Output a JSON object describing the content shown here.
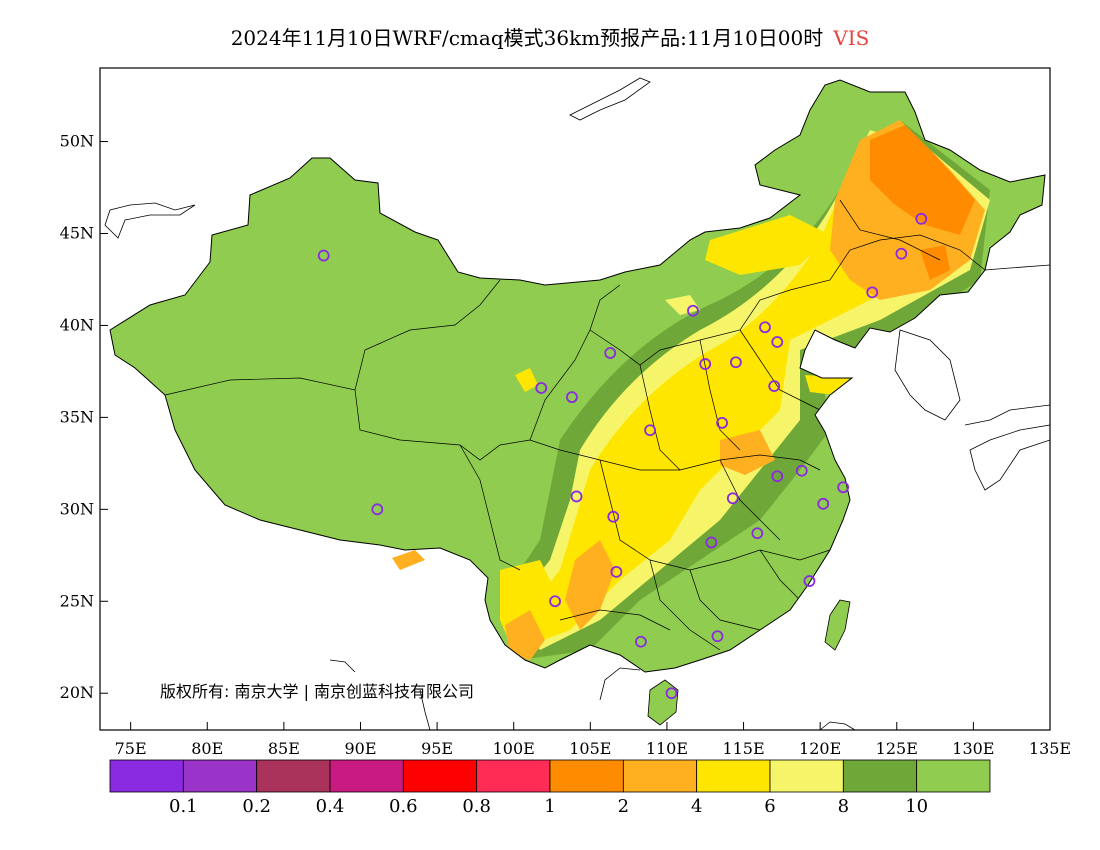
{
  "title": {
    "text": "2024年11月10日WRF/cmaq模式36km预报产品:11月10日00时",
    "variable": "VIS"
  },
  "map": {
    "lon_range": [
      73,
      135
    ],
    "lat_range": [
      18,
      54
    ],
    "lon_ticks": [
      "75E",
      "80E",
      "85E",
      "90E",
      "95E",
      "100E",
      "105E",
      "110E",
      "115E",
      "120E",
      "125E",
      "130E",
      "135E"
    ],
    "lat_ticks": [
      "20N",
      "25N",
      "30N",
      "35N",
      "40N",
      "45N",
      "50N"
    ],
    "copyright": "版权所有: 南京大学 | 南京创蓝科技有限公司",
    "stations": [
      [
        87.6,
        43.8
      ],
      [
        91.1,
        30.0
      ],
      [
        101.8,
        36.6
      ],
      [
        103.8,
        36.1
      ],
      [
        106.3,
        38.5
      ],
      [
        111.7,
        40.8
      ],
      [
        112.5,
        37.9
      ],
      [
        114.5,
        38.0
      ],
      [
        116.4,
        39.9
      ],
      [
        117.2,
        39.1
      ],
      [
        117.0,
        36.7
      ],
      [
        113.6,
        34.7
      ],
      [
        108.9,
        34.3
      ],
      [
        104.1,
        30.7
      ],
      [
        106.5,
        29.6
      ],
      [
        106.7,
        26.6
      ],
      [
        102.7,
        25.0
      ],
      [
        108.3,
        22.8
      ],
      [
        113.3,
        23.1
      ],
      [
        110.3,
        20.0
      ],
      [
        112.9,
        28.2
      ],
      [
        115.9,
        28.7
      ],
      [
        114.3,
        30.6
      ],
      [
        117.2,
        31.8
      ],
      [
        118.8,
        32.1
      ],
      [
        120.2,
        30.3
      ],
      [
        121.5,
        31.2
      ],
      [
        119.3,
        26.1
      ],
      [
        123.4,
        41.8
      ],
      [
        125.3,
        43.9
      ],
      [
        126.6,
        45.8
      ]
    ]
  },
  "legend": {
    "colors": [
      "#8a2be2",
      "#9a34c8",
      "#a9335a",
      "#c81a80",
      "#ff0000",
      "#ff2d55",
      "#ff8c00",
      "#ffb020",
      "#ffe600",
      "#f6f56a",
      "#6fa838",
      "#8fcc4f"
    ],
    "labels": [
      "0.1",
      "0.2",
      "0.4",
      "0.6",
      "0.8",
      "1",
      "2",
      "4",
      "6",
      "8",
      "10"
    ]
  },
  "chart_data": {
    "type": "heatmap",
    "variable": "VIS",
    "scale_bins": [
      "0.1",
      "0.2",
      "0.4",
      "0.6",
      "0.8",
      "1",
      "2",
      "4",
      "6",
      "8",
      "10"
    ],
    "x_ticks": [
      "75E",
      "80E",
      "85E",
      "90E",
      "95E",
      "100E",
      "105E",
      "110E",
      "115E",
      "120E",
      "125E",
      "130E",
      "135E"
    ],
    "y_ticks": [
      "20N",
      "25N",
      "30N",
      "35N",
      "40N",
      "45N",
      "50N"
    ],
    "station_count": 31
  }
}
